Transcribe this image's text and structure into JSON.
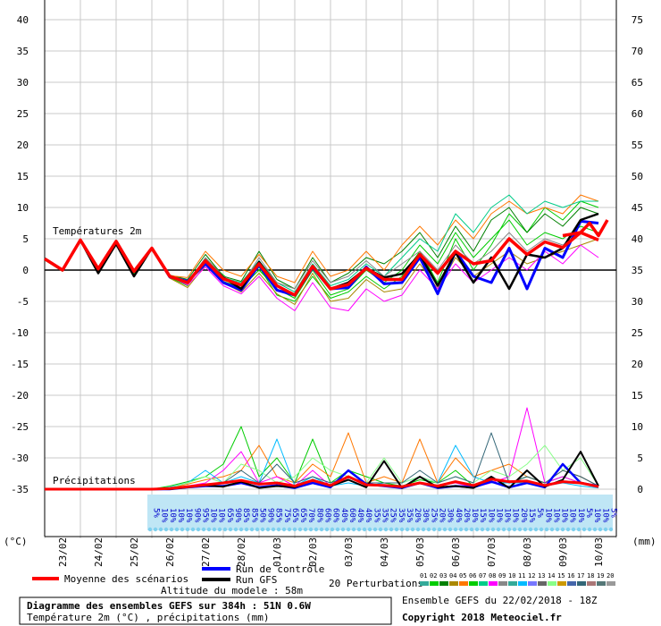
{
  "chart_data": {
    "type": "line",
    "left_axis": {
      "unit": "(°C)",
      "ticks": [
        40,
        35,
        30,
        25,
        20,
        15,
        10,
        5,
        0,
        -5,
        -10,
        -15,
        -20,
        -25,
        -30,
        -35
      ],
      "ylim": [
        -35,
        40
      ]
    },
    "right_axis": {
      "unit": "(mm)",
      "ticks": [
        75,
        70,
        65,
        60,
        55,
        50,
        45,
        40,
        35,
        30,
        25,
        20,
        15,
        10,
        5,
        0
      ],
      "ylim": [
        0,
        75
      ]
    },
    "x_dates": [
      "23/02",
      "24/02",
      "25/02",
      "26/02",
      "27/02",
      "28/02",
      "01/03",
      "02/03",
      "03/03",
      "04/03",
      "05/03",
      "06/03",
      "07/03",
      "08/03",
      "09/03",
      "10/03"
    ],
    "grid": true,
    "temp_section_label": "Températures 2m",
    "precip_section_label": "Précipitations",
    "probabilities": [
      "5%",
      "10%",
      "10%",
      "10%",
      "10%",
      "90%",
      "95%",
      "10%",
      "10%",
      "65%",
      "90%",
      "85%",
      "85%",
      "50%",
      "90%",
      "85%",
      "75%",
      "65%",
      "65%",
      "70%",
      "80%",
      "60%",
      "60%",
      "40%",
      "60%",
      "40%",
      "40%",
      "35%",
      "35%",
      "25%",
      "35%",
      "35%",
      "20%",
      "30%",
      "25%",
      "20%",
      "30%",
      "40%",
      "20%",
      "10%",
      "15%",
      "10%",
      "10%",
      "10%",
      "10%",
      "20%",
      "15%",
      "5%",
      "10%",
      "10%",
      "10%",
      "10%",
      "10%",
      "5%",
      "10%",
      "10%",
      "5%"
    ],
    "temperature": {
      "mean_x": [
        0,
        0.5,
        1,
        1.5,
        2,
        2.5,
        3,
        3.5,
        4,
        4.5,
        5,
        5.5,
        6,
        6.5,
        7,
        7.5,
        8,
        8.5,
        9,
        9.5,
        10,
        10.5,
        11,
        11.5,
        12,
        12.5,
        13,
        13.5,
        14,
        14.5,
        15,
        15.5
      ],
      "mean": [
        1.8,
        0,
        4.8,
        0.2,
        4.6,
        -0.2,
        3.5,
        -1,
        -2,
        1.5,
        -1.4,
        -2.4,
        1,
        -2.5,
        -4,
        0.6,
        -3,
        -2.3,
        0.3,
        -1.5,
        -1.5,
        2.5,
        -0.5,
        3,
        1,
        1.5,
        5,
        2.5,
        4.5,
        3.6,
        6,
        4.8
      ],
      "mean_tail": [
        [
          14.5,
          5.5
        ],
        [
          15,
          6
        ],
        [
          15.25,
          7.5
        ],
        [
          15.5,
          5.5
        ],
        [
          15.75,
          8
        ]
      ],
      "control": [
        1.8,
        0,
        4.8,
        0.2,
        4.6,
        -0.2,
        3.5,
        -1.1,
        -1.8,
        1,
        -2,
        -3.2,
        0.8,
        -3.2,
        -4,
        0.4,
        -3,
        -2.8,
        0.5,
        -2.2,
        -2,
        2,
        -3.8,
        3,
        -1,
        -2,
        3.5,
        -3,
        3.5,
        2,
        7.8,
        7.5
      ],
      "gfs": [
        1.8,
        0,
        4.8,
        -0.5,
        4.2,
        -1,
        3.5,
        -1,
        -2,
        1.5,
        -1.2,
        -3,
        1.3,
        -2.5,
        -4,
        0.6,
        -3,
        -2,
        0.3,
        -1.2,
        -0.6,
        2.5,
        -2.5,
        2.8,
        -2,
        2,
        -3,
        2.5,
        2,
        3.5,
        8,
        9
      ],
      "perturbations": [
        [
          1.8,
          0,
          4.8,
          0.2,
          4.6,
          -0.2,
          3.5,
          -1,
          -2,
          1.5,
          -1.4,
          -2.4,
          1,
          -2.5,
          -4,
          0.6,
          -3,
          -2.3,
          0.3,
          -1.5,
          -1.5,
          2.5,
          -0.5,
          3,
          1,
          1.5,
          5,
          2.5,
          4.5,
          3.6,
          6,
          4.8
        ],
        [
          1.6,
          -0.2,
          4.6,
          -0.2,
          4.4,
          -0.6,
          3.3,
          -1.2,
          -2.5,
          1.8,
          -0.8,
          -3,
          0.5,
          -4,
          -5,
          -1,
          -4.5,
          -3.5,
          -1,
          -3,
          -1,
          3,
          -2,
          5,
          0,
          4,
          9,
          6,
          10,
          8,
          11,
          10
        ],
        [
          1.9,
          0.1,
          4.9,
          0.4,
          4.8,
          0,
          3.6,
          -0.8,
          -1.5,
          2.5,
          -1,
          -1.8,
          3,
          -1.5,
          -3,
          2,
          -2,
          -0.5,
          2,
          1,
          3,
          6,
          2,
          7,
          3,
          8,
          10,
          6,
          9,
          7,
          10,
          9
        ],
        [
          1.7,
          -0.1,
          4.7,
          0,
          4.5,
          -0.4,
          3.4,
          -1.3,
          -2.8,
          0.8,
          -2,
          -3.5,
          -0.5,
          -3.8,
          -5.5,
          -0.5,
          -5,
          -4.5,
          -1.5,
          -3.5,
          -3,
          1,
          -3,
          2,
          -1,
          1,
          3,
          1,
          2,
          3,
          4,
          5
        ],
        [
          1.8,
          0,
          4.8,
          0.2,
          4.6,
          -0.3,
          3.5,
          -0.9,
          -1.2,
          3,
          0,
          -1,
          2.5,
          -1,
          -2,
          3,
          -1,
          0,
          3,
          0,
          4,
          7,
          4,
          8,
          5,
          9,
          11,
          9,
          10,
          9,
          12,
          11
        ],
        [
          1.8,
          0,
          4.8,
          0.1,
          4.6,
          -0.2,
          3.4,
          -1.1,
          -2.2,
          1.2,
          -1.8,
          -2.8,
          0,
          -3,
          -4.5,
          0,
          -4,
          -3,
          0,
          -2,
          0,
          4,
          1,
          6,
          2,
          5,
          8,
          4,
          6,
          5,
          7,
          6
        ],
        [
          1.8,
          0,
          4.8,
          0.2,
          4.6,
          -0.2,
          3.5,
          -1,
          -1.8,
          1.8,
          -1.2,
          -2,
          1.5,
          -2,
          -3.5,
          1,
          -2.5,
          -1.5,
          1,
          -1,
          2,
          5,
          3,
          9,
          6,
          10,
          12,
          9,
          11,
          10,
          11,
          11
        ],
        [
          1.8,
          0,
          4.8,
          0.2,
          4.6,
          -0.2,
          3.5,
          -1,
          -2.4,
          0.5,
          -2.5,
          -3.8,
          -1,
          -4.5,
          -6.5,
          -2,
          -6,
          -6.5,
          -3,
          -5,
          -4,
          0,
          -3,
          1,
          -2,
          0,
          2,
          0,
          3,
          1,
          4,
          2
        ],
        [
          1.8,
          0,
          4.8,
          0.2,
          4.6,
          -0.2,
          3.6,
          -0.9,
          -2,
          2,
          -1,
          -2.5,
          2,
          -2,
          -3,
          1.5,
          -2,
          -1,
          1.5,
          -1,
          1,
          3,
          0,
          4,
          1,
          3,
          6,
          3,
          5,
          4,
          6,
          5
        ]
      ]
    },
    "precipitation": {
      "x": [
        0,
        0.5,
        1,
        1.5,
        2,
        2.5,
        3,
        3.5,
        4,
        4.5,
        5,
        5.5,
        6,
        6.5,
        7,
        7.5,
        8,
        8.5,
        9,
        9.5,
        10,
        10.5,
        11,
        11.5,
        12,
        12.5,
        13,
        13.5,
        14,
        14.5,
        15,
        15.5
      ],
      "mean": [
        0,
        0,
        0,
        0,
        0,
        0,
        0,
        0.1,
        0.4,
        0.7,
        1,
        1.4,
        0.8,
        1,
        0.5,
        1.4,
        0.6,
        2,
        0.7,
        0.6,
        0.4,
        1,
        0.5,
        1.2,
        0.6,
        1.6,
        1.2,
        1.3,
        0.6,
        1.2,
        1,
        0.4
      ],
      "control": [
        0,
        0,
        0,
        0,
        0,
        0,
        0,
        0,
        0.3,
        0.5,
        0.5,
        1,
        0.3,
        0.6,
        0.2,
        1,
        0.3,
        3,
        0.8,
        0.5,
        0.2,
        1,
        0.2,
        0.5,
        0.3,
        1.2,
        0.3,
        1,
        0.3,
        4,
        1,
        0.5
      ],
      "gfs": [
        0,
        0,
        0,
        0,
        0,
        0,
        0,
        0,
        0.3,
        0.6,
        0.4,
        1.2,
        0.2,
        0.5,
        0.3,
        1.5,
        0.5,
        1.5,
        0.3,
        4.5,
        0.2,
        2,
        0.3,
        0.5,
        0.2,
        2,
        0.2,
        3,
        0.4,
        1.5,
        6,
        0.5
      ],
      "perturbations": [
        [
          0,
          0,
          0,
          0,
          0,
          0,
          0,
          0.5,
          1.2,
          2,
          4,
          10,
          2,
          5,
          1,
          8,
          1,
          3,
          2,
          1,
          0.5,
          1.5,
          1,
          3,
          0.5,
          1.5,
          1,
          2,
          1,
          2,
          1,
          0.5
        ],
        [
          0,
          0,
          0,
          0,
          0,
          0,
          0,
          0.2,
          0.8,
          1.5,
          2,
          3,
          7,
          2,
          1,
          4,
          2,
          9,
          1,
          2,
          1,
          8,
          1,
          5,
          2,
          3,
          4,
          2,
          1,
          3,
          2,
          0.5
        ],
        [
          0,
          0,
          0,
          0,
          0,
          0,
          0,
          0.1,
          0.5,
          1,
          3,
          6,
          1,
          2,
          0.5,
          3,
          0.5,
          2,
          1,
          0.5,
          0.3,
          1,
          0.5,
          1,
          0.3,
          1,
          2,
          13,
          1,
          2,
          1,
          0.5
        ],
        [
          0,
          0,
          0,
          0,
          0,
          0,
          0,
          0.3,
          1,
          3,
          1,
          2,
          1,
          8,
          0.5,
          2,
          0.5,
          1,
          0.5,
          1,
          1,
          2,
          1,
          7,
          2,
          1,
          1,
          1,
          0.5,
          1,
          0.5,
          0.2
        ],
        [
          0,
          0,
          0,
          0,
          0,
          0,
          0,
          0.2,
          1,
          2,
          1,
          4,
          3,
          1,
          2,
          5,
          3,
          2,
          1,
          5,
          1,
          2,
          1,
          2,
          1,
          3,
          2,
          4,
          7,
          3,
          5,
          0.5
        ],
        [
          0,
          0,
          0,
          0,
          0,
          0,
          0,
          0.1,
          0.3,
          0.5,
          1,
          3,
          1,
          4,
          1,
          2,
          1,
          2,
          1,
          1,
          1,
          3,
          1,
          2,
          1,
          9,
          1,
          2,
          1,
          3,
          2,
          0.5
        ]
      ]
    }
  },
  "legend": {
    "mean_label": "Moyenne des scénarios",
    "control_label": "Run de contrôle",
    "gfs_label": "Run GFS",
    "perturbations_label": "20 Perturbations",
    "perturbation_ids": [
      "01",
      "02",
      "03",
      "04",
      "05",
      "06",
      "07",
      "08",
      "09",
      "10",
      "11",
      "12",
      "13",
      "14",
      "15",
      "16",
      "17",
      "18",
      "19",
      "20"
    ],
    "altitude": "Altitude du modele : 58m"
  },
  "footer": {
    "title": "Diagramme des ensembles GEFS sur 384h : 51N 0.6W",
    "subtitle": "Température 2m (°C) , précipitations (mm)",
    "run_info": "Ensemble GEFS du 22/02/2018 - 18Z",
    "copyright": "Copyright 2018 Meteociel.fr"
  },
  "colors": {
    "mean": "#ff0000",
    "control": "#0000ff",
    "gfs": "#000000",
    "grid": "#c8c8c8",
    "prob_band": "#bfe6f5",
    "perturbations": [
      "#33aa99",
      "#00cc00",
      "#008000",
      "#aa8800",
      "#ff7700",
      "#00cc00",
      "#00cc88",
      "#ff00ff",
      "#888888",
      "#33aa99",
      "#00bbff",
      "#7777ff",
      "#666666",
      "#88ff88",
      "#cc9900",
      "#4466aa",
      "#336677",
      "#aa7777",
      "#557777",
      "#999999"
    ]
  }
}
